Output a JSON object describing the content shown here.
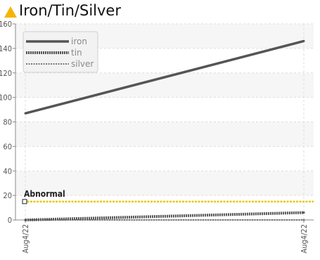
{
  "header": {
    "title": "Iron/Tin/Silver",
    "warning_icon": "warning-triangle-icon",
    "warning_icon_color": "#f5b400"
  },
  "chart_data": {
    "type": "line",
    "title": "Iron/Tin/Silver",
    "xlabel": "",
    "ylabel": "",
    "x_tick_labels": [
      "Aug4/22",
      "Aug4/22"
    ],
    "ylim": [
      0,
      160
    ],
    "y_ticks": [
      0,
      20,
      40,
      60,
      80,
      100,
      120,
      140,
      160
    ],
    "grid": true,
    "legend_position": "top-left",
    "series": [
      {
        "name": "iron",
        "color": "#555555",
        "style": "solid",
        "values": [
          87,
          146
        ]
      },
      {
        "name": "tin",
        "color": "#555555",
        "style": "dotted",
        "values": [
          0,
          6
        ]
      },
      {
        "name": "silver",
        "color": "#777777",
        "style": "dashed",
        "values": [
          0,
          0
        ]
      }
    ],
    "threshold": {
      "label": "Abnormal",
      "value": 15,
      "color": "#e6c700"
    }
  }
}
